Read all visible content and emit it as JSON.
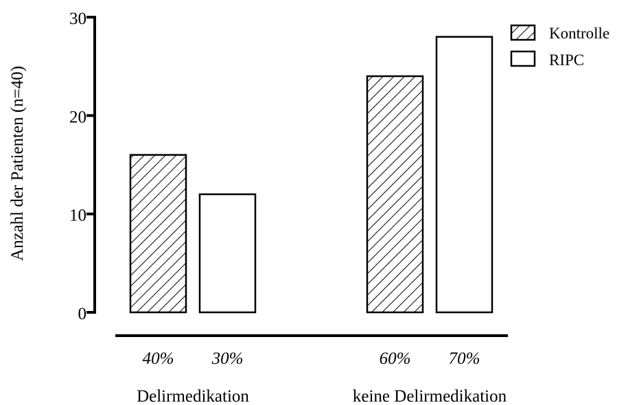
{
  "chart_data": {
    "type": "bar",
    "title": "",
    "xlabel": "",
    "ylabel": "Anzahl der Patienten (n=40)",
    "ylim": [
      0,
      30
    ],
    "yticks": [
      "0",
      "10",
      "20",
      "30"
    ],
    "ytick_values": [
      0,
      10,
      20,
      30
    ],
    "categories": [
      "Delirmedikation",
      "keine Delirmedikation"
    ],
    "series": [
      {
        "name": "Kontrolle",
        "pattern": "hatched",
        "values": [
          16,
          24
        ],
        "bar_labels": [
          "40%",
          "60%"
        ]
      },
      {
        "name": "RIPC",
        "pattern": "open",
        "values": [
          12,
          28
        ],
        "bar_labels": [
          "30%",
          "70%"
        ]
      }
    ],
    "legend_position": "top-right",
    "grid": false
  }
}
